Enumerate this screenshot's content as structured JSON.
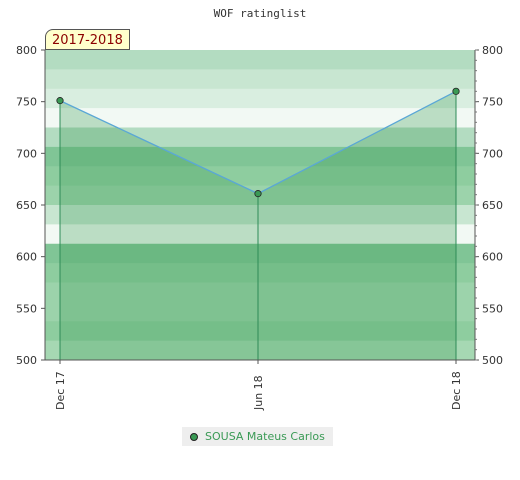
{
  "chart_data": {
    "type": "line",
    "title": "WOF ratinglist",
    "season_label": "2017-2018",
    "x": [
      "Dec 17",
      "Jun 18",
      "Dec 18"
    ],
    "series": [
      {
        "name": "SOUSA Mateus Carlos",
        "values": [
          751,
          661,
          760
        ]
      }
    ],
    "ylim": [
      500,
      800
    ],
    "y_ticks": [
      "500",
      "550",
      "600",
      "650",
      "700",
      "750",
      "800"
    ],
    "grid": true,
    "legend_position": "bottom",
    "colors": {
      "line": "#5aa7d6",
      "area": "#3a9a55",
      "marker": "#3a9a55"
    }
  }
}
